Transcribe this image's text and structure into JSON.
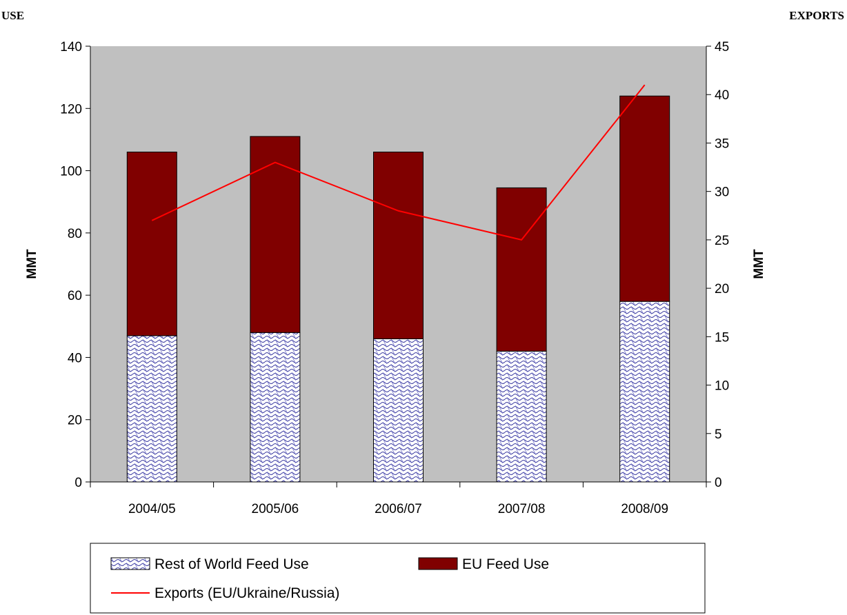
{
  "chart_data": {
    "type": "bar",
    "stacked": true,
    "left_corner_title": "USE",
    "right_corner_title": "EXPORTS",
    "categories": [
      "2004/05",
      "2005/06",
      "2006/07",
      "2007/08",
      "2008/09"
    ],
    "series": [
      {
        "name": "Rest of World Feed Use",
        "type": "bar",
        "axis": "left",
        "values": [
          47,
          48,
          46,
          42,
          58
        ],
        "pattern": "blue-white-wave-hatch"
      },
      {
        "name": "EU Feed Use",
        "type": "bar",
        "axis": "left",
        "values": [
          59,
          63,
          60,
          52.5,
          66
        ],
        "color": "#800000"
      },
      {
        "name": "Exports (EU/Ukraine/Russia)",
        "type": "line",
        "axis": "right",
        "values": [
          27,
          33,
          28,
          25,
          41
        ],
        "color": "#ff0000"
      }
    ],
    "y_left": {
      "label": "MMT",
      "min": 0,
      "max": 140,
      "step": 20
    },
    "y_right": {
      "label": "MMT",
      "min": 0,
      "max": 45,
      "step": 5
    },
    "plot_background": "#c0c0c0",
    "grid": false,
    "legend_position": "bottom"
  }
}
